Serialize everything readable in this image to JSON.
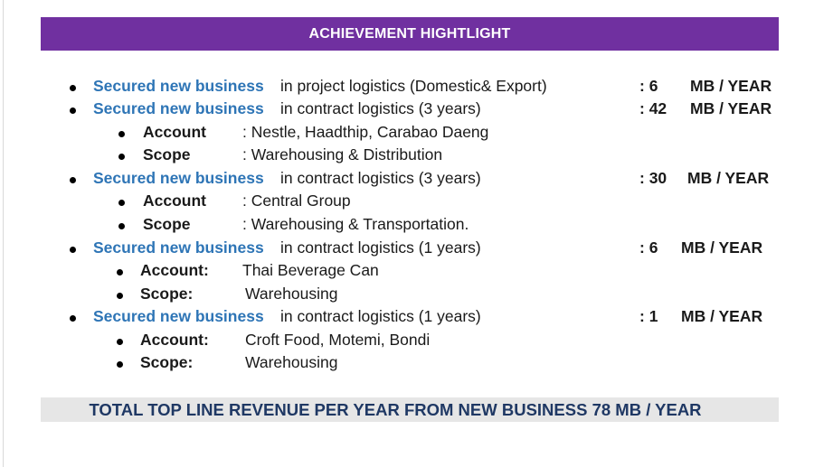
{
  "header": {
    "title": "ACHIEVEMENT HIGHTLIGHT"
  },
  "items": [
    {
      "highlight": "Secured new business",
      "text": "in project logistics (Domestic& Export)",
      "amount": ":  6",
      "unit": "MB / YEAR",
      "subs": []
    },
    {
      "highlight": "Secured new business",
      "text": "in contract logistics (3 years)",
      "amount": ": 42",
      "unit": "MB / YEAR",
      "subs": [
        {
          "label": "Account",
          "value": ": Nestle, Haadthip, Carabao Daeng"
        },
        {
          "label": "Scope",
          "value": ": Warehousing & Distribution"
        }
      ]
    },
    {
      "highlight": "Secured new business",
      "text": "in contract logistics (3 years)",
      "amount": ": 30",
      "unit": "MB / YEAR",
      "subs": [
        {
          "label": "Account",
          "value": ": Central Group"
        },
        {
          "label": "Scope",
          "value": ": Warehousing & Transportation."
        }
      ]
    },
    {
      "highlight": "Secured new business",
      "text": "in contract logistics (1 years)",
      "amount": ":  6",
      "unit": "MB / YEAR",
      "subs": [
        {
          "label": "Account:",
          "value": "Thai Beverage Can"
        },
        {
          "label": "Scope:",
          "value": "Warehousing"
        }
      ]
    },
    {
      "highlight": "Secured new business",
      "text": "in contract logistics (1 years)",
      "amount": ":  1",
      "unit": "MB / YEAR",
      "subs": [
        {
          "label": "Account:",
          "value": "Croft Food, Motemi, Bondi"
        },
        {
          "label": "Scope:",
          "value": "Warehousing"
        }
      ]
    }
  ],
  "footer": {
    "total": "TOTAL TOP LINE REVENUE PER YEAR FROM NEW BUSINESS 78 MB / YEAR"
  }
}
